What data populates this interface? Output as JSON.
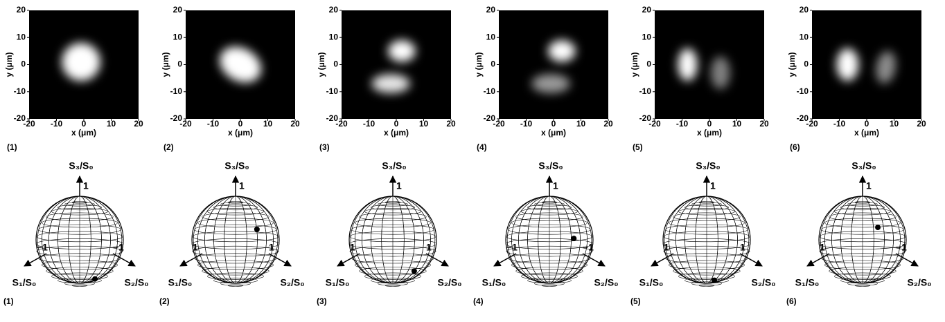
{
  "image_axes": {
    "xlabel": "x (μm)",
    "ylabel": "y (μm)",
    "xlim": [
      -20,
      20
    ],
    "ylim": [
      -20,
      20
    ],
    "xticks": [
      -20,
      -10,
      0,
      10,
      20
    ],
    "yticks": [
      -20,
      -10,
      0,
      10,
      20
    ]
  },
  "sphere_axes": {
    "s1_label": "S₁/S₀",
    "s2_label": "S₂/S₀",
    "s3_label": "S₃/S₀",
    "s3_tick": "1"
  },
  "panels": [
    {
      "image_label": "(1)",
      "sphere_label": "(1)",
      "s1_tick": "−1",
      "s2_tick": "−1",
      "stokes": [
        -0.1,
        0.4,
        -0.9
      ]
    },
    {
      "image_label": "(2)",
      "sphere_label": "(2)",
      "s1_tick": "1",
      "s2_tick": "1",
      "stokes": [
        -0.3,
        0.4,
        0.3
      ]
    },
    {
      "image_label": "(3)",
      "sphere_label": "(3)",
      "s1_tick": "1",
      "s2_tick": "1",
      "stokes": [
        -0.2,
        0.5,
        -0.7
      ]
    },
    {
      "image_label": "(4)",
      "sphere_label": "(4)",
      "s1_tick": "−1",
      "s2_tick": "−1",
      "stokes": [
        -0.3,
        0.5,
        0.1
      ]
    },
    {
      "image_label": "(5)",
      "sphere_label": "(5)",
      "s1_tick": "1",
      "s2_tick": "1",
      "stokes": [
        0,
        0.25,
        -0.95
      ]
    },
    {
      "image_label": "(6)",
      "sphere_label": "(6)",
      "s1_tick": "1",
      "s2_tick": "−1",
      "stokes": [
        -0.2,
        0.3,
        0.35
      ]
    }
  ]
}
